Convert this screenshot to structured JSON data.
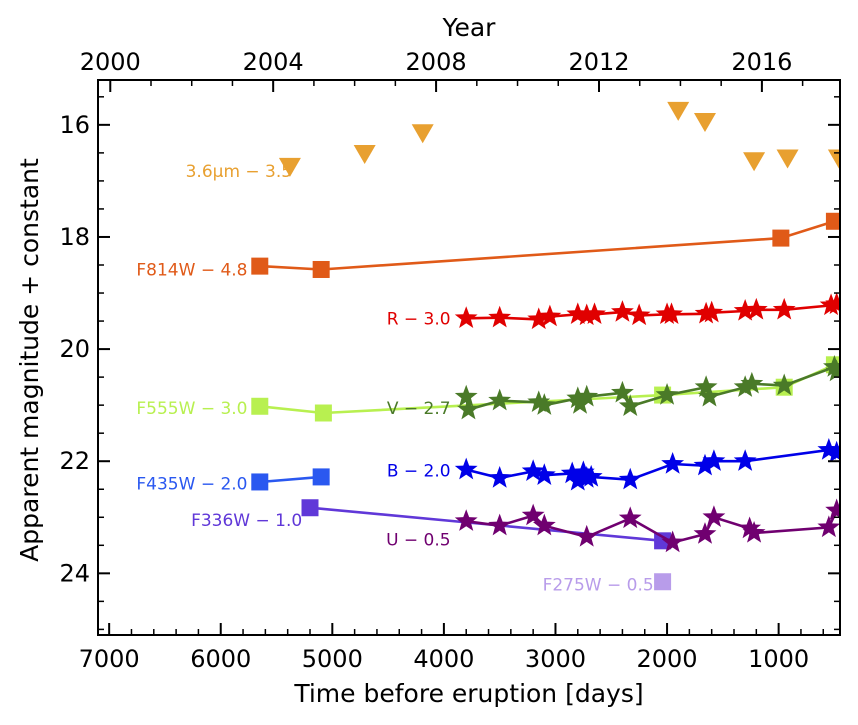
{
  "chart_data": {
    "type": "line",
    "xlabel": "Time before eruption [days]",
    "ylabel": "Apparent magnitude + constant",
    "top_xlabel": "Year",
    "xlim": [
      7100,
      450
    ],
    "ylim": [
      25.1,
      15.2
    ],
    "x_ticks": [
      7000,
      6000,
      5000,
      4000,
      3000,
      2000,
      1000
    ],
    "y_ticks": [
      16,
      18,
      20,
      22,
      24
    ],
    "top_ticks": [
      {
        "days": 6990,
        "label": "2000"
      },
      {
        "days": 5530,
        "label": "2004"
      },
      {
        "days": 4070,
        "label": "2008"
      },
      {
        "days": 2610,
        "label": "2012"
      },
      {
        "days": 1150,
        "label": "2016"
      }
    ],
    "series": [
      {
        "name": "3.6μm − 3.5",
        "color": "#E8A030",
        "marker": "triangle-down",
        "connected": false,
        "label_days": 5360,
        "label_mag": 16.82,
        "points": [
          [
            5380,
            16.75
          ],
          [
            4710,
            16.52
          ],
          [
            4190,
            16.15
          ],
          [
            1900,
            15.75
          ],
          [
            1660,
            15.95
          ],
          [
            1220,
            16.65
          ],
          [
            920,
            16.6
          ],
          [
            460,
            16.6
          ]
        ]
      },
      {
        "name": "F814W − 4.8",
        "color": "#E05A18",
        "marker": "square",
        "connected": true,
        "label_days": 5760,
        "label_mag": 18.58,
        "points": [
          [
            5650,
            18.52
          ],
          [
            5100,
            18.58
          ],
          [
            980,
            18.02
          ],
          [
            500,
            17.72
          ]
        ]
      },
      {
        "name": "R − 3.0",
        "color": "#E00000",
        "marker": "star",
        "connected": true,
        "label_days": 3940,
        "label_mag": 19.45,
        "points": [
          [
            3800,
            19.45
          ],
          [
            3500,
            19.44
          ],
          [
            3150,
            19.47
          ],
          [
            3050,
            19.42
          ],
          [
            2800,
            19.38
          ],
          [
            2720,
            19.4
          ],
          [
            2650,
            19.38
          ],
          [
            2400,
            19.34
          ],
          [
            2250,
            19.4
          ],
          [
            2000,
            19.38
          ],
          [
            1960,
            19.38
          ],
          [
            1650,
            19.37
          ],
          [
            1600,
            19.35
          ],
          [
            1300,
            19.32
          ],
          [
            1200,
            19.3
          ],
          [
            950,
            19.3
          ],
          [
            530,
            19.22
          ],
          [
            480,
            19.2
          ]
        ]
      },
      {
        "name": "F555W − 3.0",
        "color": "#B8F050",
        "marker": "square",
        "connected": true,
        "label_days": 5760,
        "label_mag": 21.05,
        "points": [
          [
            5650,
            21.02
          ],
          [
            5080,
            21.14
          ],
          [
            2040,
            20.82
          ],
          [
            950,
            20.68
          ],
          [
            500,
            20.28
          ]
        ]
      },
      {
        "name": "V − 2.7",
        "color": "#4A7A28",
        "marker": "star",
        "connected": true,
        "label_days": 3940,
        "label_mag": 21.05,
        "points": [
          [
            3800,
            20.85
          ],
          [
            3780,
            21.08
          ],
          [
            3500,
            20.92
          ],
          [
            3150,
            20.95
          ],
          [
            3100,
            21.0
          ],
          [
            2800,
            20.88
          ],
          [
            2780,
            20.98
          ],
          [
            2720,
            20.85
          ],
          [
            2400,
            20.78
          ],
          [
            2330,
            21.02
          ],
          [
            2000,
            20.82
          ],
          [
            1650,
            20.68
          ],
          [
            1620,
            20.85
          ],
          [
            1300,
            20.68
          ],
          [
            1240,
            20.62
          ],
          [
            950,
            20.65
          ],
          [
            500,
            20.32
          ],
          [
            480,
            20.4
          ]
        ]
      },
      {
        "name": "B − 2.0",
        "color": "#0000E8",
        "marker": "star",
        "connected": true,
        "label_days": 3940,
        "label_mag": 22.17,
        "points": [
          [
            3800,
            22.15
          ],
          [
            3500,
            22.3
          ],
          [
            3200,
            22.18
          ],
          [
            3100,
            22.25
          ],
          [
            2850,
            22.22
          ],
          [
            2800,
            22.35
          ],
          [
            2750,
            22.2
          ],
          [
            2720,
            22.3
          ],
          [
            2680,
            22.28
          ],
          [
            2330,
            22.33
          ],
          [
            1950,
            22.05
          ],
          [
            1660,
            22.08
          ],
          [
            1580,
            22.0
          ],
          [
            1300,
            22.0
          ],
          [
            550,
            21.8
          ],
          [
            480,
            21.85
          ]
        ]
      },
      {
        "name": "F435W − 2.0",
        "color": "#2A58F0",
        "marker": "square",
        "connected": true,
        "label_days": 5760,
        "label_mag": 22.4,
        "points": [
          [
            5650,
            22.37
          ],
          [
            5100,
            22.28
          ]
        ]
      },
      {
        "name": "F336W − 1.0",
        "color": "#6038D8",
        "marker": "square",
        "connected": true,
        "label_days": 5270,
        "label_mag": 23.05,
        "points": [
          [
            5200,
            22.83
          ],
          [
            2040,
            23.42
          ]
        ]
      },
      {
        "name": "U − 0.5",
        "color": "#700070",
        "marker": "star",
        "connected": true,
        "label_days": 3940,
        "label_mag": 23.4,
        "points": [
          [
            3800,
            23.07
          ],
          [
            3500,
            23.15
          ],
          [
            3200,
            22.97
          ],
          [
            3100,
            23.15
          ],
          [
            2720,
            23.35
          ],
          [
            2330,
            23.02
          ],
          [
            1950,
            23.45
          ],
          [
            1660,
            23.3
          ],
          [
            1580,
            23.0
          ],
          [
            1260,
            23.2
          ],
          [
            1220,
            23.28
          ],
          [
            550,
            23.18
          ],
          [
            480,
            22.88
          ]
        ]
      },
      {
        "name": "F275W − 0.5",
        "color": "#B89CEA",
        "marker": "square",
        "connected": false,
        "label_days": 2120,
        "label_mag": 24.2,
        "points": [
          [
            2040,
            24.15
          ]
        ]
      }
    ]
  }
}
